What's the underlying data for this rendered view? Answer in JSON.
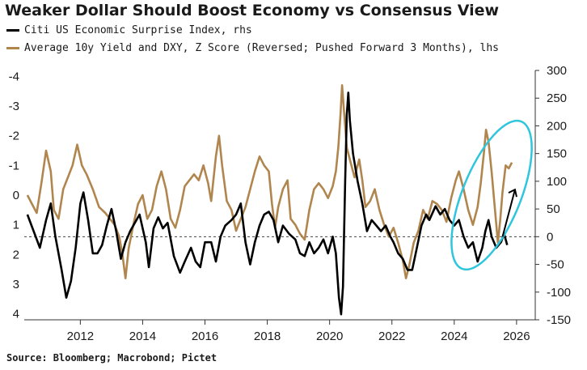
{
  "title": "Weaker Dollar Should Boost Economy vs Consensus View",
  "source": "Source: Bloomberg; Macrobond; Pictet",
  "colors": {
    "citi": "#000000",
    "zscore": "#B0864E",
    "ellipse": "#2FC6DD",
    "baseline": "#444444"
  },
  "chart_data": {
    "type": "line",
    "title": "Weaker Dollar Should Boost Economy vs Consensus View",
    "xlim": [
      2010.2,
      2026.6
    ],
    "x_ticks": [
      2012,
      2014,
      2016,
      2018,
      2020,
      2022,
      2024,
      2026
    ],
    "y_left": {
      "label": "lhs",
      "inverted": true,
      "range": [
        -4.2,
        4.2
      ],
      "ticks": [
        -4,
        -3,
        -2,
        -1,
        0,
        1,
        2,
        3,
        4
      ]
    },
    "y_right": {
      "label": "rhs",
      "range": [
        -150,
        300
      ],
      "ticks": [
        300,
        250,
        200,
        150,
        100,
        50,
        0,
        -50,
        -100,
        -150
      ]
    },
    "baseline": {
      "axis": "rhs",
      "value": 0,
      "style": "dashed"
    },
    "series": [
      {
        "name": "Citi US Economic Surprise Index, rhs",
        "axis": "rhs",
        "color": "#000000",
        "points": [
          [
            2010.3,
            40
          ],
          [
            2010.5,
            10
          ],
          [
            2010.7,
            -20
          ],
          [
            2010.9,
            30
          ],
          [
            2011.05,
            60
          ],
          [
            2011.2,
            0
          ],
          [
            2011.4,
            -60
          ],
          [
            2011.55,
            -110
          ],
          [
            2011.7,
            -80
          ],
          [
            2011.85,
            -20
          ],
          [
            2012.0,
            60
          ],
          [
            2012.1,
            80
          ],
          [
            2012.25,
            30
          ],
          [
            2012.4,
            -30
          ],
          [
            2012.55,
            -30
          ],
          [
            2012.7,
            -15
          ],
          [
            2012.85,
            20
          ],
          [
            2013.0,
            50
          ],
          [
            2013.15,
            10
          ],
          [
            2013.3,
            -40
          ],
          [
            2013.45,
            -10
          ],
          [
            2013.6,
            10
          ],
          [
            2013.75,
            25
          ],
          [
            2013.9,
            40
          ],
          [
            2014.1,
            -10
          ],
          [
            2014.2,
            -55
          ],
          [
            2014.35,
            15
          ],
          [
            2014.5,
            35
          ],
          [
            2014.65,
            15
          ],
          [
            2014.8,
            25
          ],
          [
            2015.0,
            -35
          ],
          [
            2015.2,
            -65
          ],
          [
            2015.35,
            -45
          ],
          [
            2015.55,
            -20
          ],
          [
            2015.7,
            -45
          ],
          [
            2015.85,
            -55
          ],
          [
            2016.0,
            -10
          ],
          [
            2016.2,
            -10
          ],
          [
            2016.35,
            -45
          ],
          [
            2016.5,
            0
          ],
          [
            2016.65,
            20
          ],
          [
            2016.85,
            30
          ],
          [
            2017.0,
            40
          ],
          [
            2017.15,
            60
          ],
          [
            2017.3,
            -10
          ],
          [
            2017.45,
            -50
          ],
          [
            2017.6,
            -10
          ],
          [
            2017.75,
            20
          ],
          [
            2017.9,
            40
          ],
          [
            2018.05,
            45
          ],
          [
            2018.2,
            30
          ],
          [
            2018.35,
            -10
          ],
          [
            2018.5,
            20
          ],
          [
            2018.7,
            5
          ],
          [
            2018.9,
            -5
          ],
          [
            2019.05,
            -30
          ],
          [
            2019.2,
            -35
          ],
          [
            2019.35,
            -10
          ],
          [
            2019.5,
            -30
          ],
          [
            2019.65,
            -20
          ],
          [
            2019.8,
            -5
          ],
          [
            2019.95,
            -30
          ],
          [
            2020.1,
            0
          ],
          [
            2020.2,
            -30
          ],
          [
            2020.3,
            -110
          ],
          [
            2020.37,
            -140
          ],
          [
            2020.43,
            -90
          ],
          [
            2020.5,
            100
          ],
          [
            2020.55,
            220
          ],
          [
            2020.6,
            260
          ],
          [
            2020.65,
            210
          ],
          [
            2020.75,
            150
          ],
          [
            2020.9,
            100
          ],
          [
            2021.05,
            60
          ],
          [
            2021.2,
            10
          ],
          [
            2021.35,
            30
          ],
          [
            2021.5,
            20
          ],
          [
            2021.65,
            10
          ],
          [
            2021.8,
            20
          ],
          [
            2021.95,
            0
          ],
          [
            2022.05,
            -10
          ],
          [
            2022.2,
            -30
          ],
          [
            2022.35,
            -40
          ],
          [
            2022.5,
            -60
          ],
          [
            2022.65,
            -60
          ],
          [
            2022.8,
            -20
          ],
          [
            2022.95,
            20
          ],
          [
            2023.1,
            40
          ],
          [
            2023.2,
            30
          ],
          [
            2023.4,
            55
          ],
          [
            2023.55,
            40
          ],
          [
            2023.7,
            50
          ],
          [
            2023.85,
            30
          ],
          [
            2024.0,
            20
          ],
          [
            2024.15,
            30
          ],
          [
            2024.3,
            0
          ],
          [
            2024.45,
            -20
          ],
          [
            2024.6,
            -10
          ],
          [
            2024.75,
            -45
          ],
          [
            2024.9,
            -20
          ],
          [
            2025.0,
            10
          ],
          [
            2025.1,
            30
          ],
          [
            2025.2,
            0
          ],
          [
            2025.35,
            -20
          ],
          [
            2025.5,
            -10
          ],
          [
            2025.6,
            5
          ],
          [
            2025.7,
            -15
          ]
        ]
      },
      {
        "name": "Average 10y Yield and DXY, Z Score (Reversed; Pushed Forward 3 Months), lhs",
        "axis": "lhs",
        "color": "#B0864E",
        "points": [
          [
            2010.3,
            0.0
          ],
          [
            2010.45,
            0.3
          ],
          [
            2010.6,
            0.6
          ],
          [
            2010.75,
            -0.4
          ],
          [
            2010.9,
            -1.5
          ],
          [
            2011.05,
            -0.8
          ],
          [
            2011.15,
            0.5
          ],
          [
            2011.3,
            0.8
          ],
          [
            2011.45,
            -0.2
          ],
          [
            2011.6,
            -0.6
          ],
          [
            2011.75,
            -1.0
          ],
          [
            2011.9,
            -1.7
          ],
          [
            2012.05,
            -1.0
          ],
          [
            2012.2,
            -0.7
          ],
          [
            2012.4,
            -0.2
          ],
          [
            2012.6,
            0.4
          ],
          [
            2012.8,
            0.6
          ],
          [
            2012.95,
            0.8
          ],
          [
            2013.1,
            1.0
          ],
          [
            2013.25,
            1.4
          ],
          [
            2013.35,
            2.0
          ],
          [
            2013.45,
            2.8
          ],
          [
            2013.55,
            1.8
          ],
          [
            2013.7,
            1.0
          ],
          [
            2013.85,
            0.3
          ],
          [
            2014.0,
            0.0
          ],
          [
            2014.15,
            0.8
          ],
          [
            2014.3,
            0.5
          ],
          [
            2014.45,
            -0.3
          ],
          [
            2014.6,
            -0.8
          ],
          [
            2014.75,
            -0.2
          ],
          [
            2014.9,
            0.8
          ],
          [
            2015.05,
            1.1
          ],
          [
            2015.2,
            0.5
          ],
          [
            2015.35,
            -0.3
          ],
          [
            2015.5,
            -0.5
          ],
          [
            2015.65,
            -0.7
          ],
          [
            2015.8,
            -0.5
          ],
          [
            2015.95,
            -1.0
          ],
          [
            2016.1,
            -0.4
          ],
          [
            2016.2,
            0.2
          ],
          [
            2016.35,
            -1.3
          ],
          [
            2016.45,
            -2.0
          ],
          [
            2016.55,
            -1.0
          ],
          [
            2016.7,
            0.2
          ],
          [
            2016.85,
            0.5
          ],
          [
            2017.0,
            1.2
          ],
          [
            2017.15,
            0.8
          ],
          [
            2017.3,
            0.4
          ],
          [
            2017.45,
            -0.2
          ],
          [
            2017.6,
            -0.8
          ],
          [
            2017.75,
            -1.3
          ],
          [
            2017.9,
            -1.0
          ],
          [
            2018.05,
            -0.8
          ],
          [
            2018.15,
            0.3
          ],
          [
            2018.25,
            1.1
          ],
          [
            2018.35,
            0.4
          ],
          [
            2018.5,
            -0.2
          ],
          [
            2018.65,
            -0.5
          ],
          [
            2018.75,
            0.8
          ],
          [
            2018.9,
            1.0
          ],
          [
            2019.05,
            1.3
          ],
          [
            2019.2,
            1.5
          ],
          [
            2019.35,
            0.5
          ],
          [
            2019.5,
            -0.2
          ],
          [
            2019.65,
            -0.4
          ],
          [
            2019.8,
            -0.2
          ],
          [
            2019.95,
            0.1
          ],
          [
            2020.1,
            -0.3
          ],
          [
            2020.2,
            -0.8
          ],
          [
            2020.28,
            -1.6
          ],
          [
            2020.35,
            -2.7
          ],
          [
            2020.4,
            -3.7
          ],
          [
            2020.45,
            -3.0
          ],
          [
            2020.55,
            -1.6
          ],
          [
            2020.65,
            -1.2
          ],
          [
            2020.8,
            -0.6
          ],
          [
            2020.95,
            -1.2
          ],
          [
            2021.05,
            -0.5
          ],
          [
            2021.15,
            0.4
          ],
          [
            2021.3,
            0.2
          ],
          [
            2021.45,
            -0.2
          ],
          [
            2021.6,
            0.5
          ],
          [
            2021.75,
            1.0
          ],
          [
            2021.9,
            1.4
          ],
          [
            2022.05,
            1.1
          ],
          [
            2022.2,
            1.6
          ],
          [
            2022.35,
            2.2
          ],
          [
            2022.45,
            2.8
          ],
          [
            2022.55,
            2.4
          ],
          [
            2022.7,
            1.6
          ],
          [
            2022.85,
            1.2
          ],
          [
            2023.0,
            0.5
          ],
          [
            2023.15,
            0.8
          ],
          [
            2023.3,
            0.2
          ],
          [
            2023.45,
            0.3
          ],
          [
            2023.6,
            0.5
          ],
          [
            2023.75,
            0.9
          ],
          [
            2023.9,
            0.1
          ],
          [
            2024.05,
            -0.5
          ],
          [
            2024.15,
            -0.8
          ],
          [
            2024.3,
            -0.2
          ],
          [
            2024.45,
            0.5
          ],
          [
            2024.6,
            1.0
          ],
          [
            2024.75,
            0.4
          ],
          [
            2024.85,
            -0.4
          ],
          [
            2024.95,
            -1.4
          ],
          [
            2025.02,
            -2.2
          ],
          [
            2025.1,
            -1.8
          ],
          [
            2025.2,
            -0.8
          ],
          [
            2025.3,
            0.4
          ],
          [
            2025.4,
            1.6
          ],
          [
            2025.48,
            0.8
          ],
          [
            2025.55,
            -0.1
          ],
          [
            2025.65,
            -1.0
          ],
          [
            2025.75,
            -0.9
          ],
          [
            2025.85,
            -1.1
          ]
        ]
      }
    ],
    "annotations": [
      {
        "type": "ellipse",
        "color": "#2FC6DD"
      },
      {
        "type": "arrow",
        "color": "#000000"
      }
    ]
  }
}
